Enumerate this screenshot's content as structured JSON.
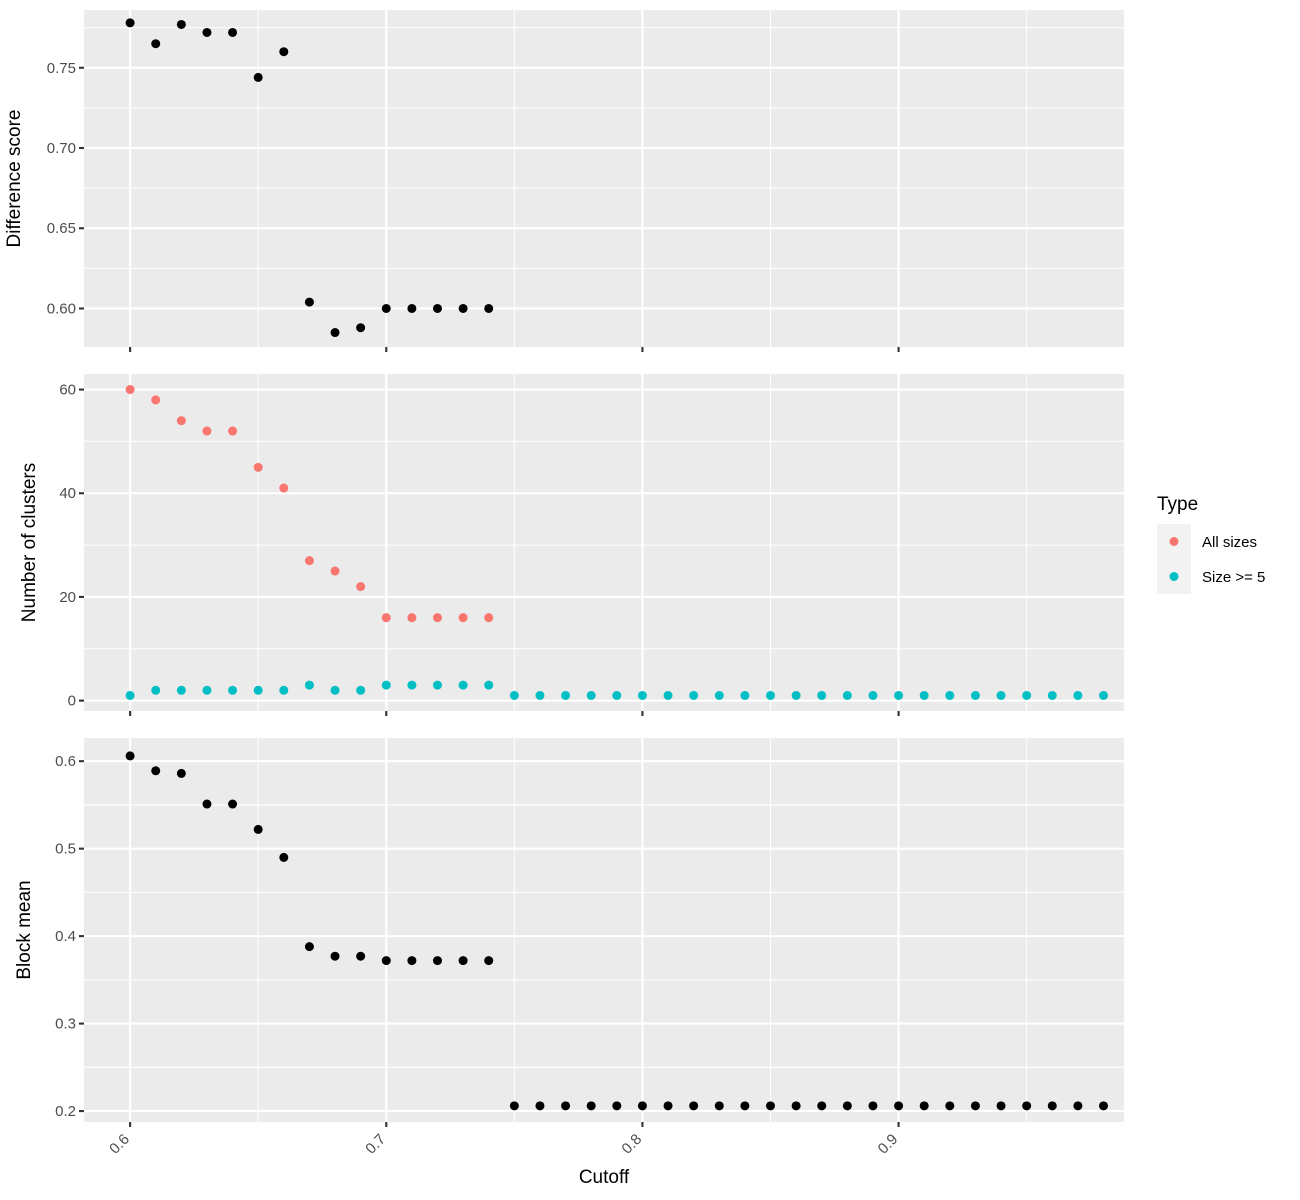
{
  "chart_data": [
    {
      "type": "scatter",
      "ylabel": "Difference score",
      "xlim": [
        0.582,
        0.988
      ],
      "ylim": [
        0.576,
        0.786
      ],
      "yticks": [
        0.6,
        0.65,
        0.7,
        0.75
      ],
      "ytick_labels": [
        "0.60",
        "0.65",
        "0.70",
        "0.75"
      ],
      "yminor": [
        0.625,
        0.675,
        0.725,
        0.775
      ],
      "series": [
        {
          "color": "#000000",
          "x": [
            0.6,
            0.61,
            0.62,
            0.63,
            0.64,
            0.65,
            0.66,
            0.67,
            0.68,
            0.69,
            0.7,
            0.71,
            0.72,
            0.73,
            0.74
          ],
          "y": [
            0.778,
            0.765,
            0.777,
            0.772,
            0.772,
            0.744,
            0.76,
            0.604,
            0.585,
            0.588,
            0.6,
            0.6,
            0.6,
            0.6,
            0.6
          ]
        }
      ]
    },
    {
      "type": "scatter",
      "ylabel": "Number of clusters",
      "xlim": [
        0.582,
        0.988
      ],
      "ylim": [
        -2,
        63
      ],
      "yticks": [
        0,
        20,
        40,
        60
      ],
      "ytick_labels": [
        "0",
        "20",
        "40",
        "60"
      ],
      "yminor": [
        10,
        30,
        50
      ],
      "series": [
        {
          "name": "All sizes",
          "color": "#F8766D",
          "x": [
            0.6,
            0.61,
            0.62,
            0.63,
            0.64,
            0.65,
            0.66,
            0.67,
            0.68,
            0.69,
            0.7,
            0.71,
            0.72,
            0.73,
            0.74
          ],
          "y": [
            60,
            58,
            54,
            52,
            52,
            45,
            41,
            27,
            25,
            22,
            16,
            16,
            16,
            16,
            16
          ]
        },
        {
          "name": "Size >= 5",
          "color": "#00BFC4",
          "x": [
            0.6,
            0.61,
            0.62,
            0.63,
            0.64,
            0.65,
            0.66,
            0.67,
            0.68,
            0.69,
            0.7,
            0.71,
            0.72,
            0.73,
            0.74,
            0.75,
            0.76,
            0.77,
            0.78,
            0.79,
            0.8,
            0.81,
            0.82,
            0.83,
            0.84,
            0.85,
            0.86,
            0.87,
            0.88,
            0.89,
            0.9,
            0.91,
            0.92,
            0.93,
            0.94,
            0.95,
            0.96,
            0.97,
            0.98
          ],
          "y": [
            1,
            2,
            2,
            2,
            2,
            2,
            2,
            3,
            2,
            2,
            3,
            3,
            3,
            3,
            3,
            1,
            1,
            1,
            1,
            1,
            1,
            1,
            1,
            1,
            1,
            1,
            1,
            1,
            1,
            1,
            1,
            1,
            1,
            1,
            1,
            1,
            1,
            1,
            1
          ]
        }
      ]
    },
    {
      "type": "scatter",
      "ylabel": "Block mean",
      "xlabel": "Cutoff",
      "xlim": [
        0.582,
        0.988
      ],
      "ylim": [
        0.1875,
        0.6265
      ],
      "yticks": [
        0.2,
        0.3,
        0.4,
        0.5,
        0.6
      ],
      "ytick_labels": [
        "0.2",
        "0.3",
        "0.4",
        "0.5",
        "0.6"
      ],
      "yminor": [
        0.25,
        0.35,
        0.45,
        0.55
      ],
      "xticks": [
        0.6,
        0.7,
        0.8,
        0.9
      ],
      "xtick_labels": [
        "0.6",
        "0.7",
        "0.8",
        "0.9"
      ],
      "series": [
        {
          "color": "#000000",
          "x": [
            0.6,
            0.61,
            0.62,
            0.63,
            0.64,
            0.65,
            0.66,
            0.67,
            0.68,
            0.69,
            0.7,
            0.71,
            0.72,
            0.73,
            0.74,
            0.75,
            0.76,
            0.77,
            0.78,
            0.79,
            0.8,
            0.81,
            0.82,
            0.83,
            0.84,
            0.85,
            0.86,
            0.87,
            0.88,
            0.89,
            0.9,
            0.91,
            0.92,
            0.93,
            0.94,
            0.95,
            0.96,
            0.97,
            0.98
          ],
          "y": [
            0.606,
            0.589,
            0.586,
            0.551,
            0.551,
            0.522,
            0.49,
            0.388,
            0.377,
            0.377,
            0.372,
            0.372,
            0.372,
            0.372,
            0.372,
            0.206,
            0.206,
            0.206,
            0.206,
            0.206,
            0.206,
            0.206,
            0.206,
            0.206,
            0.206,
            0.206,
            0.206,
            0.206,
            0.206,
            0.206,
            0.206,
            0.206,
            0.206,
            0.206,
            0.206,
            0.206,
            0.206,
            0.206,
            0.206
          ]
        }
      ]
    }
  ],
  "xticks": [
    0.6,
    0.7,
    0.8,
    0.9
  ],
  "xminor": [
    0.65,
    0.75,
    0.85,
    0.95
  ],
  "legend": {
    "title": "Type",
    "position": "right",
    "items": [
      {
        "label": "All sizes",
        "color": "#F8766D"
      },
      {
        "label": "Size >= 5",
        "color": "#00BFC4"
      }
    ]
  }
}
